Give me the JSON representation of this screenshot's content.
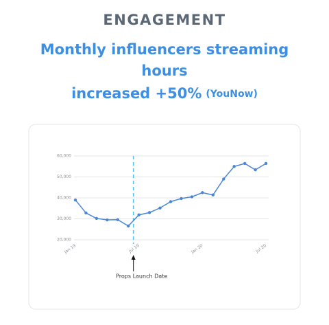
{
  "header": {
    "eyebrow": "ENGAGEMENT",
    "title_lines": [
      "Monthly influencers streaming",
      "hours",
      "increased +50%"
    ],
    "source": "(YouNow)"
  },
  "chart_data": {
    "type": "line",
    "categories": [
      "Jan 19",
      null,
      null,
      null,
      null,
      null,
      "Jul 19",
      null,
      null,
      null,
      null,
      null,
      "Jan 20",
      null,
      null,
      null,
      null,
      null,
      "Jul 20"
    ],
    "values": [
      39000,
      32800,
      30200,
      29500,
      29600,
      26600,
      31900,
      33000,
      35200,
      38200,
      39700,
      40500,
      42500,
      41400,
      49000,
      55000,
      56400,
      53400,
      56400
    ],
    "color": "#4a86d8",
    "ylim": [
      20000,
      60000
    ],
    "yticks": [
      {
        "value": 20000,
        "label": "20,000"
      },
      {
        "value": 30000,
        "label": "30,000"
      },
      {
        "value": 40000,
        "label": "40,000"
      },
      {
        "value": 50000,
        "label": "50,000"
      },
      {
        "value": 60000,
        "label": "60,000"
      }
    ],
    "grid": true,
    "annotation": {
      "text": "Props Launch Date",
      "category": "Jul 19"
    }
  }
}
